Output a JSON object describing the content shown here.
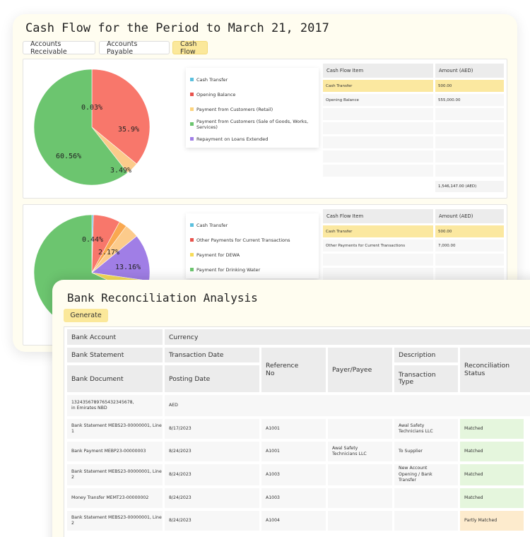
{
  "cash_flow": {
    "title": "Cash Flow for the Period to March 21, 2017",
    "tabs": [
      "Accounts Receivable",
      "Accounts Payable",
      "Cash Flow"
    ],
    "panel1": {
      "chart_data": {
        "type": "pie",
        "slices": [
          {
            "label": "Cash Transfer",
            "value": 0.03,
            "color": "#5bc0de"
          },
          {
            "label": "Opening Balance",
            "value": 35.9,
            "color": "#f8776b"
          },
          {
            "label": "Payment from Customers (Retail)",
            "value": 3.49,
            "color": "#fccb8b"
          },
          {
            "label": "Payment from Customers (Sale of Goods, Works, Services)",
            "value": 60.56,
            "color": "#6cc56f"
          }
        ],
        "data_labels": [
          "0.03%",
          "35.9%",
          "3.49%",
          "60.56%"
        ]
      },
      "legend": [
        {
          "label": "Cash Transfer",
          "color": "#5bc0de"
        },
        {
          "label": "Opening Balance",
          "color": "#e8534d"
        },
        {
          "label": "Payment from Customers (Retail)",
          "color": "#fcd37d"
        },
        {
          "label": "Payment from Customers (Sale of Goods, Works, Services)",
          "color": "#6cc56f"
        },
        {
          "label": "Repayment on Loans Extended",
          "color": "#a07ee6"
        }
      ],
      "table": {
        "headers": [
          "Cash Flow Item",
          "Amount (AED)"
        ],
        "rows": [
          [
            "Cash Transfer",
            "500.00"
          ],
          [
            "Opening Balance",
            "555,000.00"
          ]
        ],
        "total": "1,546,147.00 (AED)"
      }
    },
    "panel2": {
      "chart_data": {
        "type": "pie",
        "slices": [
          {
            "label": "",
            "value": 0.44,
            "color": "#5bc0de"
          },
          {
            "label": "",
            "value": 7.5,
            "color": "#f8776b"
          },
          {
            "label": "",
            "value": 2.17,
            "color": "#f9a850"
          },
          {
            "label": "",
            "value": 4.0,
            "color": "#fccb8b"
          },
          {
            "label": "",
            "value": 13.16,
            "color": "#a07ee6"
          },
          {
            "label": "",
            "value": 4.74,
            "color": "#f7dc57"
          },
          {
            "label": "",
            "value": 67.99,
            "color": "#6cc56f"
          }
        ],
        "data_labels": [
          "0.44%",
          "2.17%",
          "13.16%",
          "4.74%"
        ]
      },
      "legend": [
        {
          "label": "Cash Transfer",
          "color": "#5bc0de"
        },
        {
          "label": "Other Payments for Current Transactions",
          "color": "#e8534d"
        },
        {
          "label": "Payment for DEWA",
          "color": "#f7dc57"
        },
        {
          "label": "Payment for Drinking Water",
          "color": "#6cc56f"
        }
      ],
      "table": {
        "headers": [
          "Cash Flow Item",
          "Amount (AED)"
        ],
        "rows": [
          [
            "Cash Transfer",
            "500.00"
          ],
          [
            "Other Payments for Current Transactions",
            "7,000.00"
          ]
        ]
      }
    }
  },
  "bank_rec": {
    "title": "Bank Reconciliation Analysis",
    "generate_label": "Generate",
    "headers": {
      "bank_account": "Bank Account",
      "currency": "Currency",
      "bank_statement": "Bank Statement",
      "transaction_date": "Transaction Date",
      "bank_document": "Bank Document",
      "posting_date": "Posting Date",
      "reference_no": "Reference\nNo",
      "payer_payee": "Payer/Payee",
      "description": "Description",
      "transaction_type": "Transaction\nType",
      "reconciliation_status": "Reconciliation\nStatus"
    },
    "account_row": {
      "account": "1324356789765432345678,\nin Emirates NBD",
      "currency": "AED"
    },
    "rows": [
      {
        "doc": "Bank Statement MEBS23-00000001, Line 1",
        "date": "8/17/2023",
        "ref": "A1001",
        "payer": "",
        "desc": "Awal Safety\nTechnicians LLC",
        "status": "Matched"
      },
      {
        "doc": "Bank Payment MEBP23-00000003",
        "date": "8/24/2023",
        "ref": "A1001",
        "payer": "Awal Safety\nTechnicians LLC",
        "desc": "To Supplier",
        "status": "Matched"
      },
      {
        "doc": "Bank Statement MEBS23-00000001, Line 2",
        "date": "8/24/2023",
        "ref": "A1003",
        "payer": "",
        "desc": "New Account\nOpening / Bank\nTransfer",
        "status": "Matched"
      },
      {
        "doc": "Money Transfer MEMT23-00000002",
        "date": "8/24/2023",
        "ref": "A1003",
        "payer": "",
        "desc": "",
        "status": "Matched"
      },
      {
        "doc": "Bank Statement MEBS23-00000001, Line 2",
        "date": "8/24/2023",
        "ref": "A1004",
        "payer": "",
        "desc": "",
        "status": "Partly Matched"
      }
    ],
    "colors": {
      "matched": "#e5f6dd",
      "partly_matched": "#fdebcd",
      "accent": "#fbe89a"
    }
  }
}
